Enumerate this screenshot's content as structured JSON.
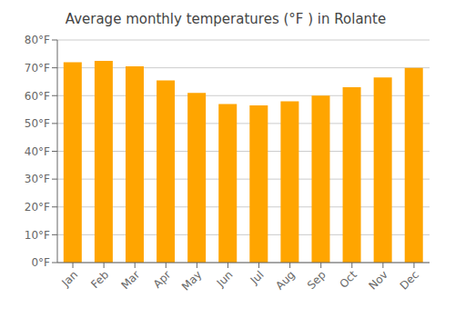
{
  "chart_data": {
    "type": "bar",
    "title": "Average monthly temperatures (°F ) in Rolante",
    "categories": [
      "Jan",
      "Feb",
      "Mar",
      "Apr",
      "May",
      "Jun",
      "Jul",
      "Aug",
      "Sep",
      "Oct",
      "Nov",
      "Dec"
    ],
    "values": [
      72,
      72.5,
      70.5,
      65.5,
      61,
      57,
      56.5,
      58,
      60,
      63,
      66.5,
      70
    ],
    "color": "#FFA500",
    "ylim": [
      0,
      80
    ],
    "yticks": [
      {
        "value": 0,
        "label": "0°F"
      },
      {
        "value": 10,
        "label": "10°F"
      },
      {
        "value": 20,
        "label": "20°F"
      },
      {
        "value": 30,
        "label": "30°F"
      },
      {
        "value": 40,
        "label": "40°F"
      },
      {
        "value": 50,
        "label": "50°F"
      },
      {
        "value": 60,
        "label": "60°F"
      },
      {
        "value": 70,
        "label": "70°F"
      },
      {
        "value": 80,
        "label": "80°F"
      }
    ],
    "grid": true
  }
}
